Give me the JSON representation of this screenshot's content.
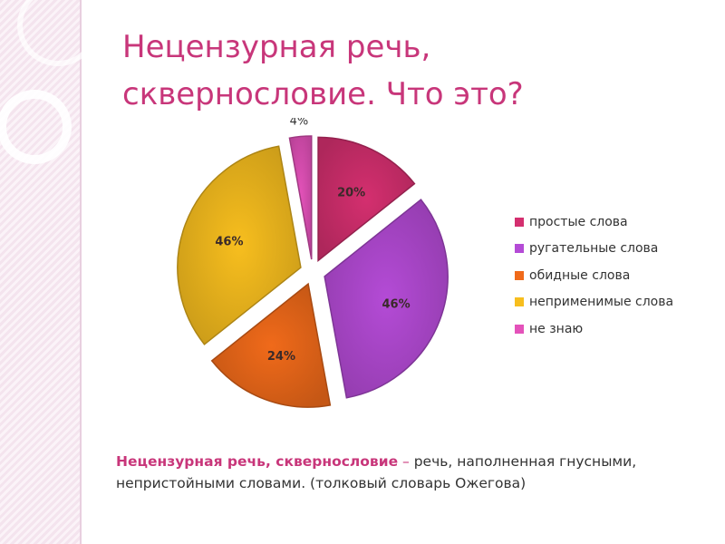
{
  "slide": {
    "title_lines": [
      "Нецензурная речь,",
      "сквернословие. Что это?"
    ],
    "definition": {
      "term": "Нецензурная речь, сквернословие",
      "dash": " – ",
      "text": "речь, наполненная гнусными, непристойными словами. (толковый словарь Ожегова)"
    }
  },
  "theme": {
    "title_color": "#c8367a",
    "text_color": "#333333"
  },
  "chart_data": {
    "type": "pie",
    "exploded": true,
    "categories": [
      "простые слова",
      "ругательные слова",
      "обидные слова",
      "неприменимые слова",
      "не знаю"
    ],
    "values": [
      20,
      46,
      24,
      46,
      4
    ],
    "data_labels": [
      "20%",
      "46%",
      "24%",
      "46%",
      "4%"
    ],
    "colors": [
      "#d42f6f",
      "#b44bd6",
      "#f06a1a",
      "#f7be1e",
      "#e452ba"
    ],
    "legend": "right",
    "title": ""
  }
}
